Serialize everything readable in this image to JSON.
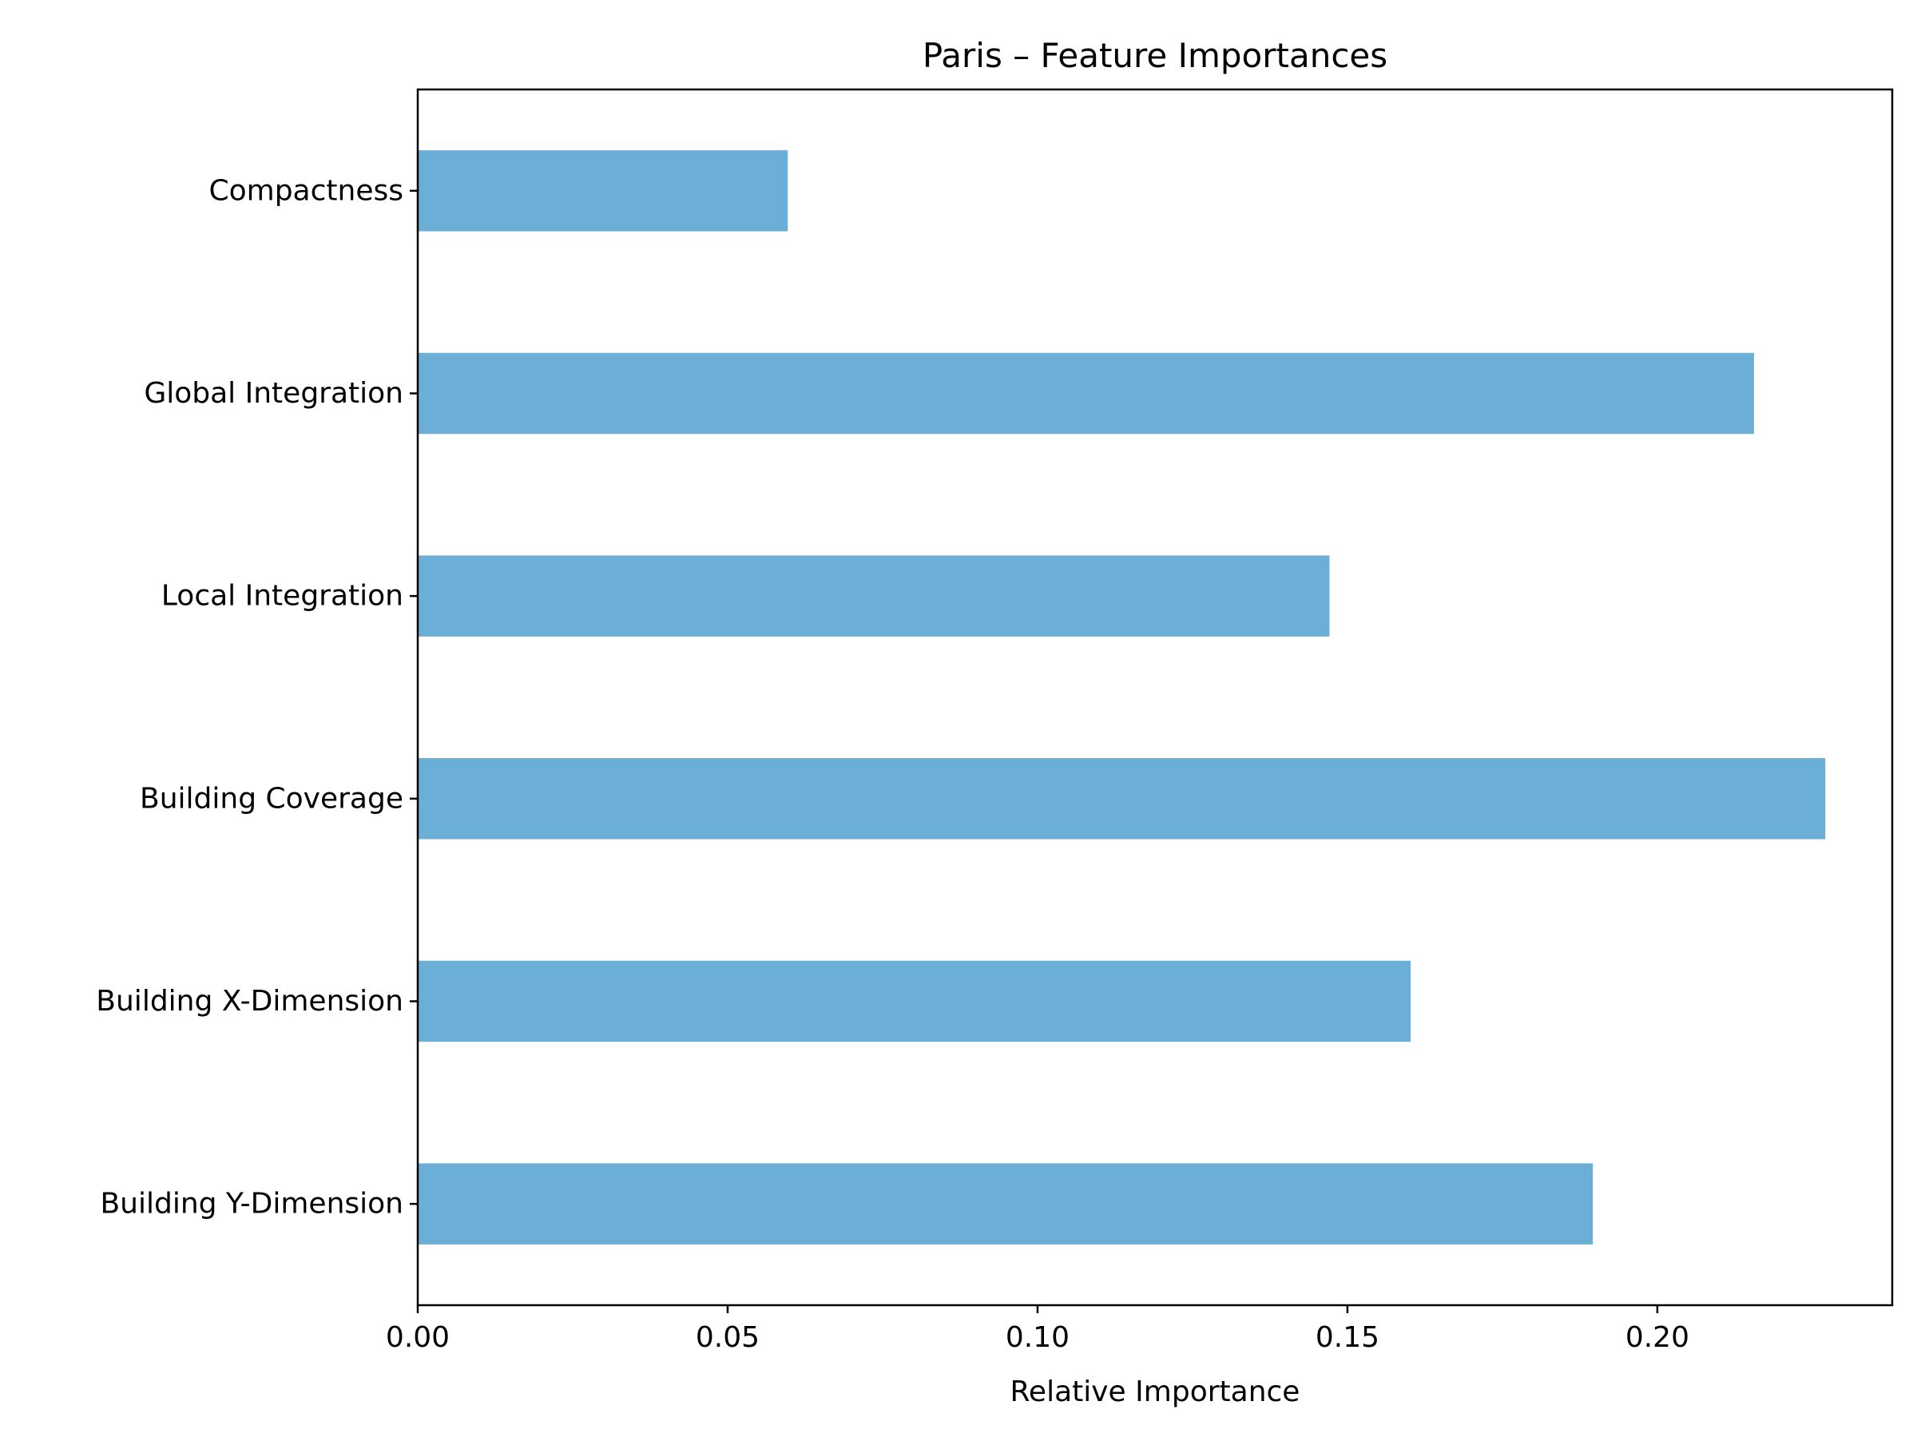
{
  "chart_data": {
    "type": "bar",
    "orientation": "horizontal",
    "title": "Paris – Feature Importances",
    "xlabel": "Relative Importance",
    "ylabel": "",
    "categories": [
      "Compactness",
      "Global Integration",
      "Local Integration",
      "Building Coverage",
      "Building X-Dimension",
      "Building Y-Dimension"
    ],
    "values": [
      0.0597,
      0.2156,
      0.1471,
      0.2271,
      0.1602,
      0.1896
    ],
    "xlim": [
      0,
      0.2379
    ],
    "x_ticks": [
      "0.00",
      "0.05",
      "0.10",
      "0.15",
      "0.20"
    ],
    "x_tick_values": [
      0,
      0.05,
      0.1,
      0.15,
      0.2
    ],
    "grid": false,
    "bar_color": "#6baed6"
  }
}
